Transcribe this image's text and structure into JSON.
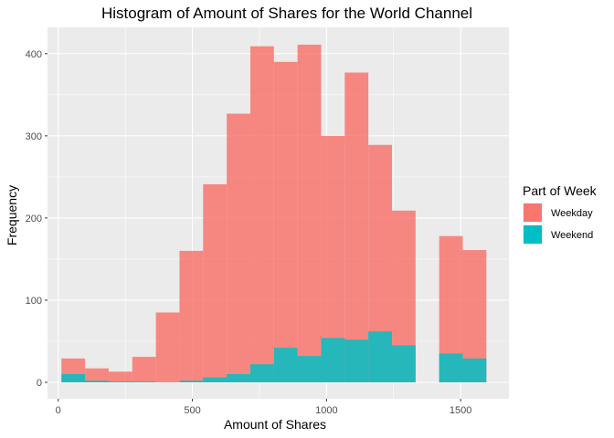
{
  "chart_data": {
    "type": "bar",
    "title": "Histogram of Amount of Shares for the World Channel",
    "xlabel": "Amount of Shares",
    "ylabel": "Frequency",
    "xlim": [
      -40,
      1680
    ],
    "ylim": [
      -20,
      432
    ],
    "xticks": [
      0,
      500,
      1000,
      1500
    ],
    "yticks": [
      0,
      100,
      200,
      300,
      400
    ],
    "x_tick_labels": [
      "0",
      "500",
      "1000",
      "1500"
    ],
    "y_tick_labels": [
      "0",
      "100",
      "200",
      "300",
      "400"
    ],
    "bin_width": 88,
    "bins": [
      56,
      144,
      232,
      320,
      408,
      496,
      584,
      672,
      760,
      848,
      936,
      1024,
      1112,
      1200,
      1288,
      1376,
      1464,
      1552
    ],
    "series": [
      {
        "name": "Weekday",
        "color": "#F8766D",
        "values": [
          29,
          17,
          13,
          31,
          85,
          160,
          241,
          327,
          409,
          390,
          411,
          300,
          377,
          289,
          209,
          0,
          178,
          161
        ]
      },
      {
        "name": "Weekend",
        "color": "#00BFC4",
        "values": [
          10,
          2,
          1,
          1,
          0,
          2,
          6,
          10,
          22,
          42,
          32,
          54,
          52,
          62,
          45,
          0,
          35,
          29
        ]
      }
    ],
    "grid": true,
    "legend": {
      "title": "Part of Week",
      "position": "right",
      "items": [
        "Weekday",
        "Weekend"
      ],
      "colors": [
        "#F8766D",
        "#00BFC4"
      ]
    }
  }
}
